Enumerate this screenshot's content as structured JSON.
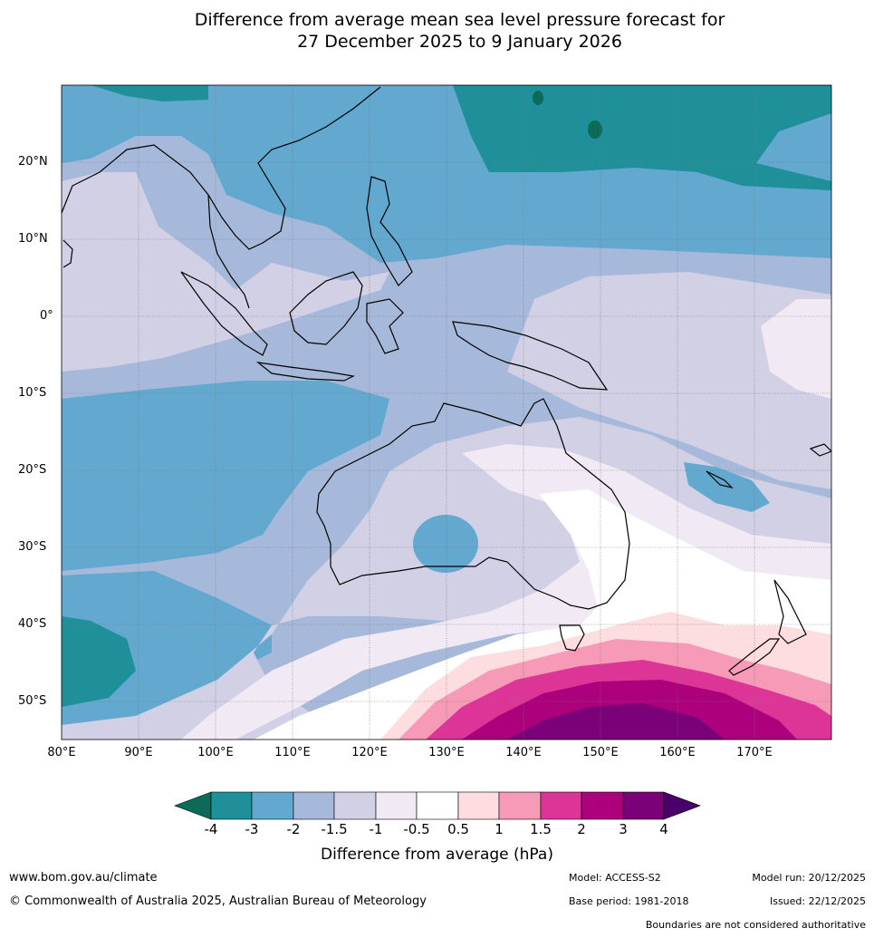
{
  "title": {
    "line1": "Difference from average mean sea level pressure forecast for",
    "line2": "27 December 2025 to 9 January 2026"
  },
  "map": {
    "lat_labels": [
      "20°N",
      "10°N",
      "0°",
      "10°S",
      "20°S",
      "30°S",
      "40°S",
      "50°S"
    ],
    "lon_labels": [
      "80°E",
      "90°E",
      "100°E",
      "110°E",
      "120°E",
      "130°E",
      "140°E",
      "150°E",
      "160°E",
      "170°E"
    ],
    "extent": {
      "lon_min": 80,
      "lon_max": 180,
      "lat_min": -55,
      "lat_max": 30
    }
  },
  "legend": {
    "title": "Difference from average (hPa)",
    "ticks": [
      "-4",
      "-3",
      "-2",
      "-1.5",
      "-1",
      "-0.5",
      "0.5",
      "1",
      "1.5",
      "2",
      "3",
      "4"
    ],
    "colors": {
      "below_minus4": "#0b6b58",
      "minus4_minus3": "#1f8f99",
      "minus3_minus2": "#62a8cf",
      "minus2_minus15": "#a7b9da",
      "minus15_minus1": "#d1d0e5",
      "minus1_minus05": "#f1e9f3",
      "minus05_05": "#ffffff",
      "p05_1": "#fddde0",
      "p1_15": "#f69ab7",
      "p15_2": "#dd3597",
      "p2_3": "#ad007d",
      "p3_4": "#7a0177",
      "above_4": "#49006a"
    }
  },
  "footer": {
    "website": "www.bom.gov.au/climate",
    "copyright": "© Commonwealth of Australia 2025, Australian Bureau of Meteorology",
    "model": "Model: ACCESS-S2",
    "model_run": "Model run: 20/12/2025",
    "base_period": "Base period: 1981-2018",
    "issued": "Issued: 22/12/2025",
    "disclaimer": "Boundaries are not considered authoritative"
  }
}
